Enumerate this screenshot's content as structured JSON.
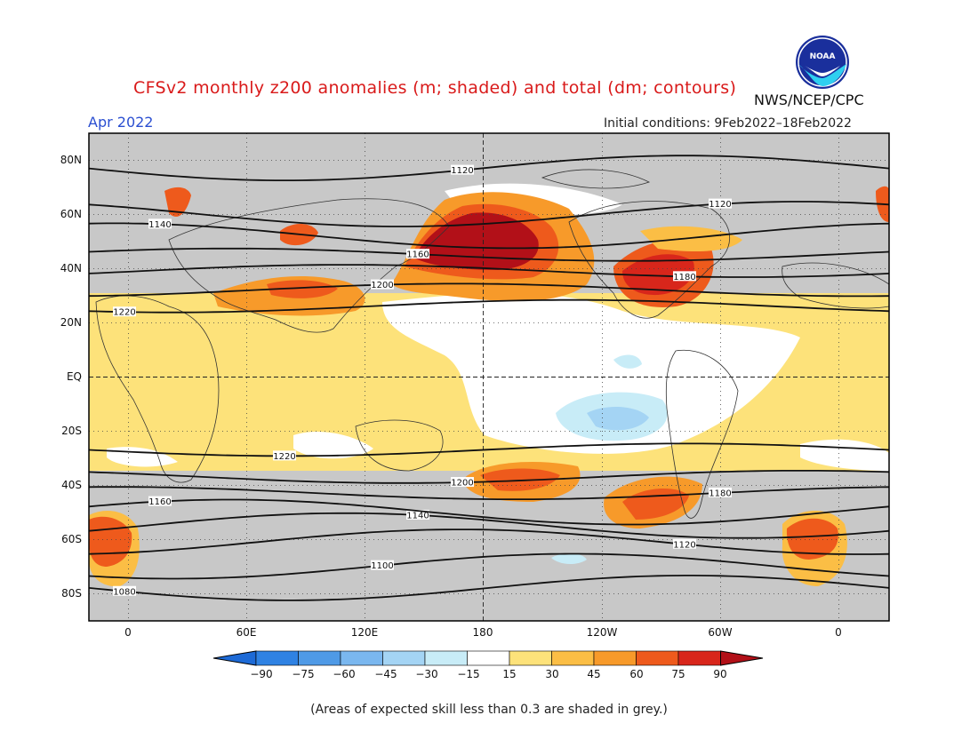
{
  "header": {
    "title": "CFSv2 monthly z200 anomalies (m; shaded) and total (dm; contours)",
    "agency": "NWS/NCEP/CPC",
    "month": "Apr 2022",
    "initial_conditions": "Initial conditions: 9Feb2022–18Feb2022"
  },
  "logo": {
    "text": "NOAA"
  },
  "map": {
    "lat_ticks": [
      "80N",
      "60N",
      "40N",
      "20N",
      "EQ",
      "20S",
      "40S",
      "60S",
      "80S"
    ],
    "lon_ticks": [
      "0",
      "60E",
      "120E",
      "180",
      "120W",
      "60W",
      "0"
    ]
  },
  "colorbar": {
    "labels": [
      "−90",
      "−75",
      "−60",
      "−45",
      "−30",
      "−15",
      "15",
      "30",
      "45",
      "60",
      "75",
      "90"
    ],
    "colors": [
      "#1d6ad6",
      "#2f82e3",
      "#4f9ae6",
      "#7ab7ef",
      "#a4d4f4",
      "#c8ecf7",
      "#ffffff",
      "#fde27a",
      "#fbbe45",
      "#f79a2a",
      "#ee5a1c",
      "#d8261b",
      "#b21018"
    ]
  },
  "contours": [
    {
      "label": "1080",
      "lat": -78
    },
    {
      "label": "1100",
      "lat": -70
    },
    {
      "label": "1120",
      "lat": -61
    },
    {
      "label": "1140",
      "lat": -55
    },
    {
      "label": "1160",
      "lat": -50
    },
    {
      "label": "1180",
      "lat": -43
    },
    {
      "label": "1200",
      "lat": -37
    },
    {
      "label": "1220",
      "lat": -27
    },
    {
      "label": "1220",
      "lat": 26
    },
    {
      "label": "1200",
      "lat": 32
    },
    {
      "label": "1180",
      "lat": 39
    },
    {
      "label": "1160",
      "lat": 45
    },
    {
      "label": "1140",
      "lat": 52
    },
    {
      "label": "1120",
      "lat": 60
    },
    {
      "label": "1120",
      "lat": 77
    }
  ],
  "footnote": "(Areas of expected skill less than 0.3 are shaded in grey.)"
}
